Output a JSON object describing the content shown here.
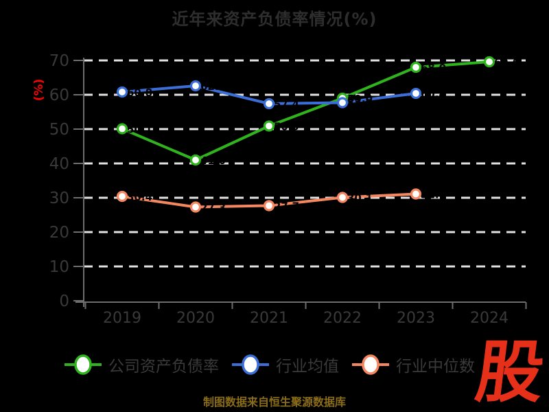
{
  "title": "近年来资产负债率情况(%)",
  "source_note": "制图数据来自恒生聚源数据库",
  "logo_text": "股",
  "colors": {
    "background": "#000000",
    "title_text": "#2e2e2e",
    "tick_text": "#3a3a3a",
    "axis_line": "#6e6e6e",
    "grid_line": "#e2e2e2",
    "ylabel_text": "#ff0000",
    "legend_text": "#3a3a3a",
    "source_text": "#8a6d16",
    "logo_red": "#e73019",
    "marker_fill": "#ffffff",
    "data_label": "#000000"
  },
  "chart_data": {
    "type": "line",
    "title": "近年来资产负债率情况(%)",
    "xlabel": "",
    "ylabel": "(%)",
    "ylim": [
      0,
      70
    ],
    "yticks": [
      0,
      10,
      20,
      30,
      40,
      50,
      60,
      70
    ],
    "grid": "horizontal white dashed",
    "legend_position": "bottom",
    "categories": [
      "2019",
      "2020",
      "2021",
      "2022",
      "2023",
      "2024"
    ],
    "series": [
      {
        "name": "公司资产负债率",
        "color": "#2fb41d",
        "values": [
          50.1,
          41.0,
          50.9,
          59.0,
          68.0,
          69.6
        ]
      },
      {
        "name": "行业均值",
        "color": "#3b6fd7",
        "values": [
          60.8,
          62.6,
          57.4,
          57.7,
          60.4,
          null
        ]
      },
      {
        "name": "行业中位数",
        "color": "#f4875f",
        "values": [
          30.4,
          27.3,
          27.7,
          30.1,
          31.1,
          null
        ]
      }
    ]
  }
}
